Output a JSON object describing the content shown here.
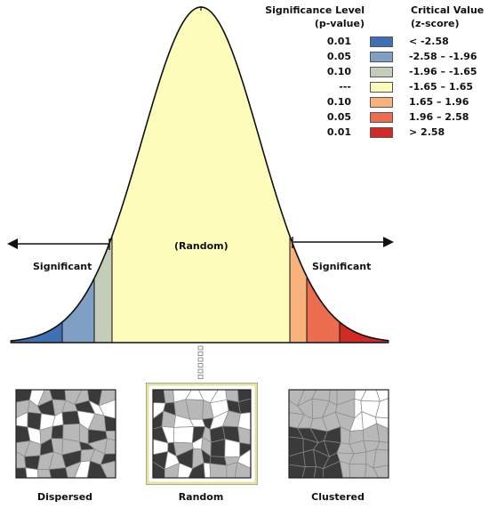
{
  "legend": {
    "sig_header_line1": "Significance Level",
    "sig_header_line2": "(p-value)",
    "crit_header_line1": "Critical Value",
    "crit_header_line2": "(z-score)",
    "rows": [
      {
        "p": "0.01",
        "z": "< -2.58",
        "color": "#3f6fb4"
      },
      {
        "p": "0.05",
        "z": "-2.58 – -1.96",
        "color": "#7f9fc4"
      },
      {
        "p": "0.10",
        "z": "-1.96 – -1.65",
        "color": "#c4ccba"
      },
      {
        "p": "---",
        "z": "-1.65 – 1.65",
        "color": "#fefcbb"
      },
      {
        "p": "0.10",
        "z": "1.65 – 1.96",
        "color": "#f8b27c"
      },
      {
        "p": "0.05",
        "z": "1.96 – 2.58",
        "color": "#eb6c4e"
      },
      {
        "p": "0.01",
        "z": "> 2.58",
        "color": "#d42a25"
      }
    ]
  },
  "curve": {
    "center_label": "(Random)",
    "left_label": "Significant",
    "right_label": "Significant"
  },
  "thumbnails": [
    {
      "caption": "Dispersed"
    },
    {
      "caption": "Random"
    },
    {
      "caption": "Clustered"
    }
  ],
  "colors": {
    "thumb_dark": "#3a3a3a",
    "thumb_mid": "#b8b8b8",
    "thumb_light": "#ffffff",
    "selected_border": "#e5e2a0"
  }
}
